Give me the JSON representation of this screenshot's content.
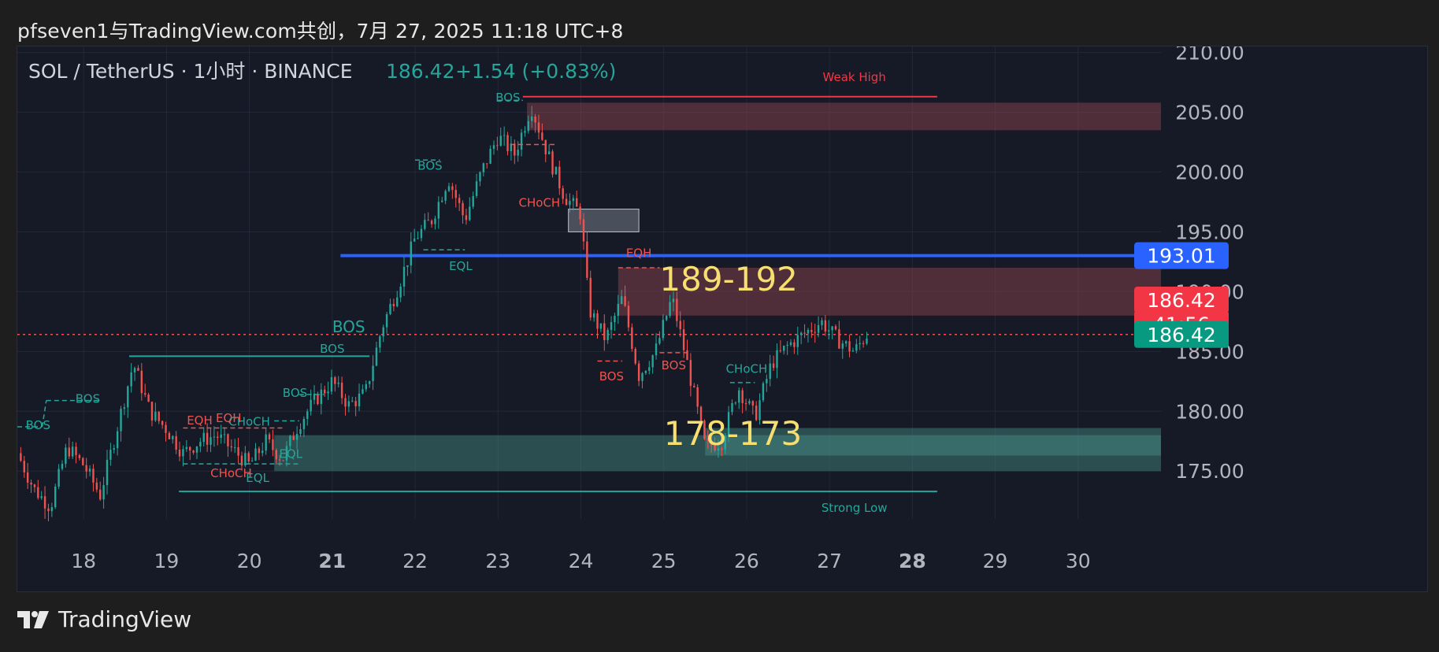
{
  "header": {
    "text": "pfseven1与TradingView.com共创，7月 27, 2025 11:18 UTC+8"
  },
  "symbol": {
    "pair": "SOL / TetherUS · 1小时 · BINANCE",
    "last": "186.42",
    "change": "+1.54 (+0.83%)"
  },
  "footer": {
    "brand": "TradingView"
  },
  "colors": {
    "up": "#26a69a",
    "down": "#ef5350",
    "background": "#151a26",
    "blue_line": "#2962ff",
    "yellow_label": "#f6de70",
    "supply_zone": "#6b3a44",
    "demand_zone": "#2f5f5b"
  },
  "icons": {
    "brand_logo": "tradingview-logo-icon"
  },
  "chart_data": {
    "type": "candlestick",
    "timeframe": "1小时",
    "exchange": "BINANCE",
    "ylim": [
      171,
      210.5
    ],
    "xlim": [
      17.2,
      31.0
    ],
    "y_ticks": [
      "175.00",
      "180.00",
      "185.00",
      "190.00",
      "195.00",
      "200.00",
      "205.00",
      "210.00"
    ],
    "x_ticks": [
      {
        "label": "18",
        "value": 18,
        "bold": false
      },
      {
        "label": "19",
        "value": 19,
        "bold": false
      },
      {
        "label": "20",
        "value": 20,
        "bold": false
      },
      {
        "label": "21",
        "value": 21,
        "bold": true
      },
      {
        "label": "22",
        "value": 22,
        "bold": false
      },
      {
        "label": "23",
        "value": 23,
        "bold": false
      },
      {
        "label": "24",
        "value": 24,
        "bold": false
      },
      {
        "label": "25",
        "value": 25,
        "bold": false
      },
      {
        "label": "26",
        "value": 26,
        "bold": false
      },
      {
        "label": "27",
        "value": 27,
        "bold": false
      },
      {
        "label": "28",
        "value": 28,
        "bold": true
      },
      {
        "label": "29",
        "value": 29,
        "bold": false
      },
      {
        "label": "30",
        "value": 30,
        "bold": false
      }
    ],
    "price_path": [
      [
        17.2,
        176.5
      ],
      [
        17.4,
        173.5
      ],
      [
        17.6,
        172.0
      ],
      [
        17.8,
        177.0
      ],
      [
        18.0,
        175.5
      ],
      [
        18.2,
        173.0
      ],
      [
        18.4,
        178.5
      ],
      [
        18.6,
        184.0
      ],
      [
        18.8,
        180.0
      ],
      [
        19.0,
        178.5
      ],
      [
        19.2,
        176.5
      ],
      [
        19.4,
        177.5
      ],
      [
        19.6,
        178.0
      ],
      [
        19.8,
        176.8
      ],
      [
        20.0,
        175.5
      ],
      [
        20.2,
        177.5
      ],
      [
        20.4,
        176.0
      ],
      [
        20.6,
        179.0
      ],
      [
        20.8,
        181.0
      ],
      [
        21.0,
        182.5
      ],
      [
        21.2,
        180.5
      ],
      [
        21.4,
        181.5
      ],
      [
        21.6,
        187.0
      ],
      [
        21.8,
        190.5
      ],
      [
        22.0,
        194.5
      ],
      [
        22.2,
        196.0
      ],
      [
        22.4,
        199.5
      ],
      [
        22.6,
        196.0
      ],
      [
        22.8,
        200.0
      ],
      [
        23.0,
        203.0
      ],
      [
        23.2,
        201.5
      ],
      [
        23.4,
        205.5
      ],
      [
        23.6,
        201.5
      ],
      [
        23.8,
        198.0
      ],
      [
        24.0,
        196.5
      ],
      [
        24.1,
        188.5
      ],
      [
        24.3,
        186.0
      ],
      [
        24.5,
        189.5
      ],
      [
        24.7,
        183.0
      ],
      [
        24.9,
        185.0
      ],
      [
        25.1,
        189.5
      ],
      [
        25.3,
        183.5
      ],
      [
        25.5,
        177.0
      ],
      [
        25.7,
        177.5
      ],
      [
        25.9,
        182.0
      ],
      [
        26.1,
        179.5
      ],
      [
        26.3,
        184.0
      ],
      [
        26.5,
        185.5
      ],
      [
        26.7,
        186.5
      ],
      [
        26.9,
        187.5
      ],
      [
        27.1,
        186.0
      ],
      [
        27.3,
        185.0
      ],
      [
        27.45,
        186.42
      ]
    ],
    "last_price": 186.42,
    "price_labels": [
      {
        "value": "193.01",
        "price": 193.01,
        "color": "#2962ff"
      },
      {
        "value": "186.42",
        "price": 189.3,
        "color": "#f23645"
      },
      {
        "value": "41:56",
        "price": 187.3,
        "color": "#f23645"
      },
      {
        "value": "186.42",
        "price": 186.42,
        "color": "#089981"
      }
    ],
    "zones": [
      {
        "x1": 23.35,
        "x2": 31.0,
        "y1": 203.5,
        "y2": 205.8,
        "type": "supply"
      },
      {
        "x1": 24.45,
        "x2": 31.0,
        "y1": 188.0,
        "y2": 192.0,
        "type": "supply"
      },
      {
        "x1": 23.85,
        "x2": 24.7,
        "y1": 195.0,
        "y2": 196.9,
        "type": "neutral"
      },
      {
        "x1": 20.3,
        "x2": 31.0,
        "y1": 175.0,
        "y2": 178.0,
        "type": "demand"
      },
      {
        "x1": 25.5,
        "x2": 31.0,
        "y1": 176.3,
        "y2": 178.6,
        "type": "demand"
      }
    ],
    "levels": [
      {
        "x1": 23.3,
        "x2": 28.3,
        "price": 206.3,
        "color": "#f23645",
        "label": "Weak High",
        "lx": 27.3,
        "ly": 207.6
      },
      {
        "x1": 21.1,
        "x2": 31.0,
        "price": 193.01,
        "color": "#2962ff",
        "label": "",
        "lx": 0,
        "ly": 0
      },
      {
        "x1": 19.15,
        "x2": 28.3,
        "price": 173.3,
        "color": "#26a69a",
        "label": "Strong Low",
        "lx": 27.3,
        "ly": 171.6
      },
      {
        "x1": 18.55,
        "x2": 21.45,
        "price": 184.6,
        "color": "#26a69a",
        "label": "",
        "lx": 0,
        "ly": 0
      }
    ],
    "annotations": [
      {
        "text": "BOS",
        "x": 23.12,
        "y": 205.9,
        "color": "up"
      },
      {
        "text": "BOS",
        "x": 22.18,
        "y": 200.2,
        "color": "up"
      },
      {
        "text": "BOS",
        "x": 21.0,
        "y": 184.9,
        "color": "up"
      },
      {
        "text": "BOS",
        "x": 20.55,
        "y": 181.2,
        "color": "up"
      },
      {
        "text": "BOS",
        "x": 18.05,
        "y": 180.7,
        "color": "up"
      },
      {
        "text": "BOS",
        "x": 17.45,
        "y": 178.5,
        "color": "up"
      },
      {
        "text": "CHoCH",
        "x": 20.0,
        "y": 178.8,
        "color": "up"
      },
      {
        "text": "CHoCH",
        "x": 26.0,
        "y": 183.2,
        "color": "up"
      },
      {
        "text": "EQL",
        "x": 22.55,
        "y": 191.8,
        "color": "up"
      },
      {
        "text": "EQL",
        "x": 20.5,
        "y": 176.1,
        "color": "up"
      },
      {
        "text": "EQL",
        "x": 20.1,
        "y": 174.1,
        "color": "up"
      },
      {
        "text": "CHoCH",
        "x": 23.5,
        "y": 197.1,
        "color": "down"
      },
      {
        "text": "EQH",
        "x": 24.7,
        "y": 192.9,
        "color": "down"
      },
      {
        "text": "EQH",
        "x": 19.4,
        "y": 178.9,
        "color": "down"
      },
      {
        "text": "EQH",
        "x": 19.75,
        "y": 179.1,
        "color": "down"
      },
      {
        "text": "CHoCH",
        "x": 19.78,
        "y": 174.5,
        "color": "down"
      },
      {
        "text": "BOS",
        "x": 24.37,
        "y": 182.6,
        "color": "down"
      },
      {
        "text": "BOS",
        "x": 25.12,
        "y": 183.5,
        "color": "down"
      }
    ],
    "big_labels": [
      {
        "text": "BOS",
        "x": 21.0,
        "y": 186.6,
        "size": 20,
        "color": "#26a69a"
      },
      {
        "text": "189-192",
        "x": 24.95,
        "y": 190.1,
        "size": 42,
        "color": "#f6de70"
      },
      {
        "text": "178-173",
        "x": 25.0,
        "y": 177.2,
        "size": 42,
        "color": "#f6de70"
      }
    ]
  }
}
